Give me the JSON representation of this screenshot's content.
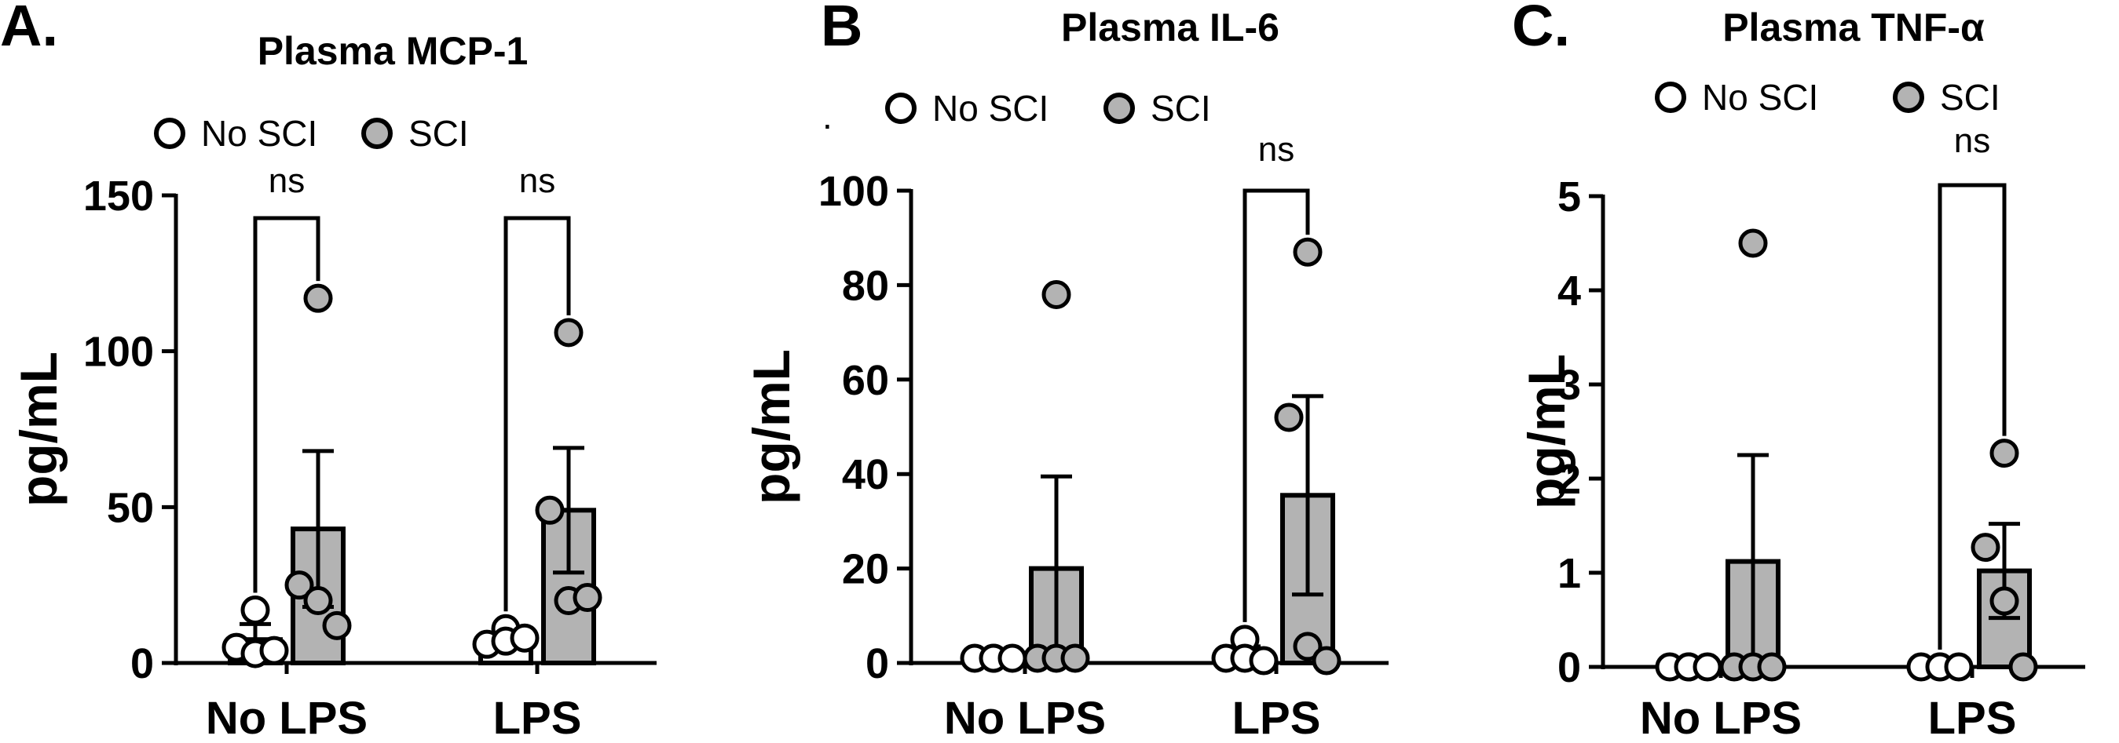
{
  "colors": {
    "no_sci_fill": "#ffffff",
    "sci_fill": "#b3b3b3",
    "stroke": "#000000"
  },
  "chart_data": [
    {
      "type": "bar",
      "panel": "A.",
      "title": "Plasma MCP-1",
      "ylabel": "pg/mL",
      "ylim": [
        0,
        150
      ],
      "yticks": [
        0,
        50,
        100,
        150
      ],
      "categories": [
        "No LPS",
        "LPS"
      ],
      "legend": {
        "placement": "top",
        "prefix": "",
        "entries": [
          "No SCI",
          "SCI"
        ]
      },
      "series": [
        {
          "name": "No SCI",
          "values": [
            7.5,
            7
          ],
          "sem": [
            5,
            2
          ],
          "points": [
            [
              17,
              5,
              3,
              4
            ],
            [
              11,
              6,
              7,
              8
            ]
          ]
        },
        {
          "name": "SCI",
          "values": [
            43,
            49
          ],
          "sem": [
            25,
            20
          ],
          "points": [
            [
              117,
              25,
              20,
              12
            ],
            [
              106,
              49,
              20,
              21
            ]
          ]
        }
      ],
      "comparisons": [
        {
          "category": "No LPS",
          "label": "ns"
        },
        {
          "category": "LPS",
          "label": "ns"
        }
      ]
    },
    {
      "type": "bar",
      "panel": "B",
      "title": "Plasma IL-6",
      "ylabel": "pg/mL",
      "ylim": [
        0,
        100
      ],
      "yticks": [
        0,
        20,
        40,
        60,
        80,
        100
      ],
      "categories": [
        "No LPS",
        "LPS"
      ],
      "legend": {
        "placement": "top",
        "prefix": ".",
        "entries": [
          "No SCI",
          "SCI"
        ]
      },
      "series": [
        {
          "name": "No SCI",
          "values": [
            1,
            2
          ],
          "sem": [
            0.5,
            1.5
          ],
          "points": [
            [
              1,
              1,
              1,
              1
            ],
            [
              5,
              1,
              1,
              0.5
            ]
          ]
        },
        {
          "name": "SCI",
          "values": [
            20,
            35.5
          ],
          "sem": [
            19.5,
            21
          ],
          "points": [
            [
              78,
              1,
              1,
              1
            ],
            [
              87,
              52,
              3.5,
              0.5
            ]
          ]
        }
      ],
      "comparisons": [
        {
          "category": "LPS",
          "label": "ns"
        }
      ]
    },
    {
      "type": "bar",
      "panel": "C.",
      "title": "Plasma TNF-α",
      "ylabel": "pg/mL",
      "ylim": [
        0,
        5
      ],
      "yticks": [
        0,
        1,
        2,
        3,
        4,
        5
      ],
      "categories": [
        "No LPS",
        "LPS"
      ],
      "legend": {
        "placement": "top",
        "prefix": "",
        "entries": [
          "No SCI",
          "SCI"
        ]
      },
      "series": [
        {
          "name": "No SCI",
          "values": [
            0,
            0
          ],
          "sem": [
            0,
            0
          ],
          "points": [
            [
              0,
              0,
              0,
              0
            ],
            [
              0,
              0,
              0,
              0
            ]
          ]
        },
        {
          "name": "SCI",
          "values": [
            1.12,
            1.02
          ],
          "sem": [
            1.13,
            0.5
          ],
          "points": [
            [
              4.5,
              0,
              0,
              0
            ],
            [
              2.27,
              1.27,
              0.7,
              0
            ]
          ]
        }
      ],
      "comparisons": [
        {
          "category": "LPS",
          "label": "ns"
        }
      ]
    }
  ]
}
